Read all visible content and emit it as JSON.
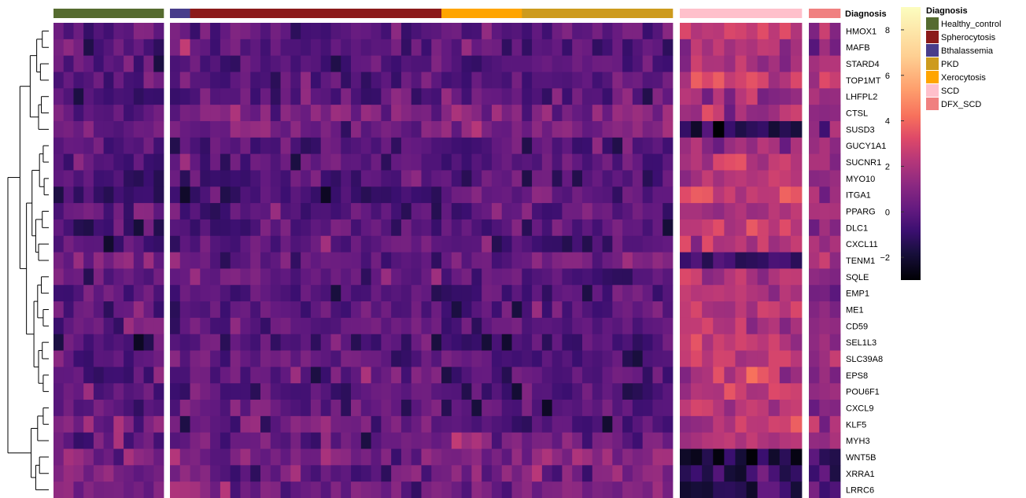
{
  "chart_data": {
    "type": "heatmap",
    "genes": [
      "HMOX1",
      "MAFB",
      "STARD4",
      "TOP1MT",
      "LHFPL2",
      "CTSL",
      "SUSD3",
      "GUCY1A1",
      "SUCNR1",
      "MYO10",
      "ITGA1",
      "PPARG",
      "DLC1",
      "CXCL11",
      "TENM1",
      "SQLE",
      "EMP1",
      "ME1",
      "CD59",
      "SEL1L3",
      "SLC39A8",
      "EPS8",
      "POU6F1",
      "CXCL9",
      "KLF5",
      "MYH3",
      "WNT5B",
      "XRRA1",
      "LRRC6"
    ],
    "annotation_label": "Diagnosis",
    "groups": [
      {
        "name": "Healthy_control",
        "color": "#556b2f",
        "n": 11
      },
      {
        "name": "Bthalassemia",
        "color": "#483d8b",
        "n": 2
      },
      {
        "name": "Spherocytosis",
        "color": "#8b1a1a",
        "n": 25
      },
      {
        "name": "Xerocytosis",
        "color": "#ffa500",
        "n": 8
      },
      {
        "name": "PKD",
        "color": "#cd9b1d",
        "n": 15
      },
      {
        "name": "SCD",
        "color": "#ffc0cb",
        "n": 11
      },
      {
        "name": "DFX_SCD",
        "color": "#f08080",
        "n": 3
      }
    ],
    "legend_order": [
      "Healthy_control",
      "Spherocytosis",
      "Bthalassemia",
      "PKD",
      "Xerocytosis",
      "SCD",
      "DFX_SCD"
    ],
    "colorbar": {
      "min": -3,
      "max": 9,
      "ticks": [
        -2,
        0,
        2,
        4,
        6,
        8
      ]
    },
    "group_mean": {
      "Healthy_control": [
        0.0,
        -0.1,
        -0.2,
        -0.2,
        -0.6,
        0.1,
        0.5,
        -0.3,
        -0.3,
        -0.2,
        -0.5,
        -0.2,
        -0.4,
        -0.5,
        0.9,
        -0.1,
        0.0,
        0.3,
        0.1,
        -0.6,
        -0.3,
        -0.1,
        0.1,
        0.1,
        0.2,
        0.2,
        0.8,
        0.6,
        0.8
      ],
      "Bthalassemia": [
        0.2,
        1.5,
        -0.5,
        -0.3,
        -0.5,
        0.3,
        0.3,
        -1.4,
        0.4,
        -0.8,
        -1.0,
        0.5,
        -0.3,
        -0.7,
        0.8,
        -0.4,
        -0.3,
        -0.5,
        -0.2,
        -0.5,
        -0.4,
        -0.4,
        -0.3,
        -0.1,
        0.1,
        0.2,
        0.8,
        0.6,
        0.6
      ],
      "Spherocytosis": [
        -0.1,
        0.0,
        -0.3,
        -0.2,
        -0.1,
        0.4,
        0.7,
        -0.3,
        -0.3,
        -0.3,
        -0.7,
        -0.3,
        -0.2,
        0.1,
        0.1,
        0.3,
        -0.2,
        0.0,
        0.2,
        -0.4,
        0.2,
        0.3,
        0.0,
        0.1,
        0.2,
        0.1,
        0.4,
        0.2,
        0.4
      ],
      "Xerocytosis": [
        0.2,
        0.2,
        -0.4,
        -0.5,
        0.0,
        1.2,
        1.0,
        -0.3,
        -0.4,
        -0.2,
        0.1,
        0.0,
        -0.1,
        -0.3,
        0.0,
        -0.1,
        -0.4,
        -0.6,
        -0.3,
        -0.7,
        -0.3,
        -0.5,
        -0.6,
        -0.6,
        -0.5,
        0.8,
        0.8,
        0.3,
        0.6
      ],
      "PKD": [
        0.0,
        -0.4,
        0.0,
        -0.1,
        0.1,
        0.6,
        0.8,
        -0.4,
        -0.3,
        -0.4,
        -0.2,
        0.1,
        -0.2,
        -0.2,
        0.8,
        -0.5,
        -0.3,
        -0.4,
        -0.2,
        -0.3,
        -0.3,
        -0.1,
        -0.3,
        -0.3,
        -0.2,
        0.2,
        0.9,
        0.4,
        0.6
      ],
      "SCD": [
        2.6,
        1.5,
        1.8,
        2.8,
        1.8,
        2.0,
        -1.5,
        1.6,
        2.4,
        2.2,
        2.6,
        2.0,
        2.5,
        2.3,
        -0.9,
        1.9,
        2.2,
        2.1,
        2.2,
        2.6,
        2.5,
        2.4,
        2.3,
        2.3,
        2.4,
        1.8,
        -1.5,
        -0.8,
        -1.4
      ],
      "DFX_SCD": [
        1.5,
        1.1,
        1.4,
        1.7,
        1.1,
        1.3,
        1.1,
        1.4,
        1.0,
        1.0,
        1.5,
        1.7,
        1.1,
        1.4,
        1.5,
        1.4,
        1.2,
        1.2,
        1.4,
        1.5,
        1.3,
        1.3,
        1.1,
        1.4,
        1.6,
        1.4,
        -0.9,
        -1.0,
        0.0
      ]
    }
  }
}
